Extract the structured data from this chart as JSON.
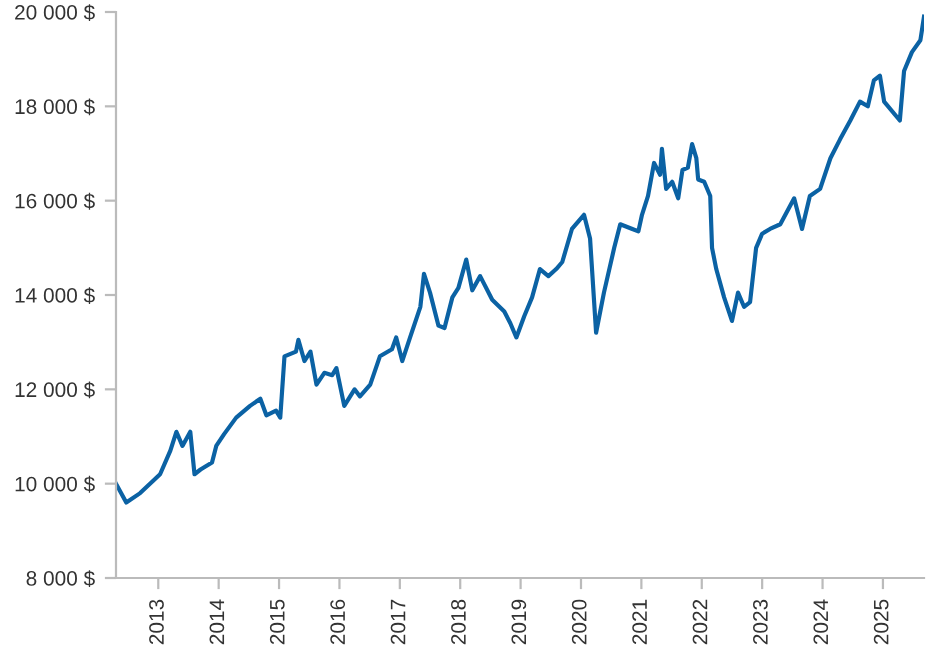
{
  "chart_data": {
    "type": "line",
    "x": [
      2012.3,
      2012.47,
      2012.7,
      2013.03,
      2013.2,
      2013.3,
      2013.4,
      2013.53,
      2013.6,
      2013.7,
      2013.89,
      2013.96,
      2014.09,
      2014.29,
      2014.52,
      2014.69,
      2014.79,
      2014.95,
      2015.02,
      2015.09,
      2015.28,
      2015.32,
      2015.42,
      2015.52,
      2015.62,
      2015.75,
      2015.88,
      2015.95,
      2016.08,
      2016.25,
      2016.34,
      2016.51,
      2016.67,
      2016.87,
      2016.94,
      2017.04,
      2017.17,
      2017.34,
      2017.4,
      2017.5,
      2017.64,
      2017.74,
      2017.87,
      2017.97,
      2018.1,
      2018.2,
      2018.33,
      2018.53,
      2018.73,
      2018.83,
      2018.93,
      2019.06,
      2019.19,
      2019.32,
      2019.46,
      2019.59,
      2019.69,
      2019.85,
      2020.05,
      2020.15,
      2020.25,
      2020.38,
      2020.55,
      2020.65,
      2020.85,
      2020.95,
      2021.01,
      2021.11,
      2021.21,
      2021.31,
      2021.34,
      2021.41,
      2021.51,
      2021.61,
      2021.68,
      2021.77,
      2021.84,
      2021.91,
      2021.94,
      2022.04,
      2022.14,
      2022.17,
      2022.24,
      2022.37,
      2022.5,
      2022.6,
      2022.7,
      2022.8,
      2022.9,
      2023.0,
      2023.13,
      2023.3,
      2023.53,
      2023.66,
      2023.79,
      2023.96,
      2024.13,
      2024.29,
      2024.46,
      2024.62,
      2024.75,
      2024.85,
      2024.95,
      2025.02,
      2025.28,
      2025.35,
      2025.48,
      2025.62,
      2025.68
    ],
    "series": [
      {
        "color": "#0b62a4",
        "values": [
          10000,
          9600,
          9800,
          10200,
          10700,
          11100,
          10800,
          11100,
          10200,
          10300,
          10450,
          10800,
          11050,
          11400,
          11650,
          11800,
          11450,
          11550,
          11400,
          12700,
          12800,
          13050,
          12600,
          12800,
          12100,
          12350,
          12300,
          12450,
          11650,
          12000,
          11850,
          12100,
          12700,
          12850,
          13100,
          12600,
          13100,
          13750,
          14450,
          14050,
          13350,
          13300,
          13950,
          14150,
          14750,
          14100,
          14400,
          13900,
          13650,
          13400,
          13100,
          13550,
          13950,
          14550,
          14400,
          14550,
          14700,
          15400,
          15700,
          15200,
          13200,
          14050,
          15000,
          15500,
          15400,
          15350,
          15700,
          16100,
          16800,
          16550,
          17100,
          16250,
          16400,
          16050,
          16650,
          16700,
          17200,
          16900,
          16450,
          16400,
          16100,
          15000,
          14550,
          13950,
          13450,
          14050,
          13750,
          13850,
          15000,
          15300,
          15400,
          15500,
          16050,
          15400,
          16100,
          16250,
          16900,
          17300,
          17700,
          18100,
          18000,
          18550,
          18650,
          18100,
          17700,
          18750,
          19150,
          19400,
          19900
        ]
      }
    ],
    "xlim": [
      2012.3,
      2025.68
    ],
    "xticks": [
      2013,
      2014,
      2015,
      2016,
      2017,
      2018,
      2019,
      2020,
      2021,
      2022,
      2023,
      2024,
      2025
    ],
    "ylim": [
      8000,
      20000
    ],
    "yticks": [
      {
        "value": 8000,
        "label": "8 000 $"
      },
      {
        "value": 10000,
        "label": "10 000 $"
      },
      {
        "value": 12000,
        "label": "12 000 $"
      },
      {
        "value": 14000,
        "label": "14 000 $"
      },
      {
        "value": 16000,
        "label": "16 000 $"
      },
      {
        "value": 18000,
        "label": "18 000 $"
      },
      {
        "value": 20000,
        "label": "20 000 $"
      }
    ],
    "grid": false,
    "marker": "none",
    "line_style": "solid"
  }
}
